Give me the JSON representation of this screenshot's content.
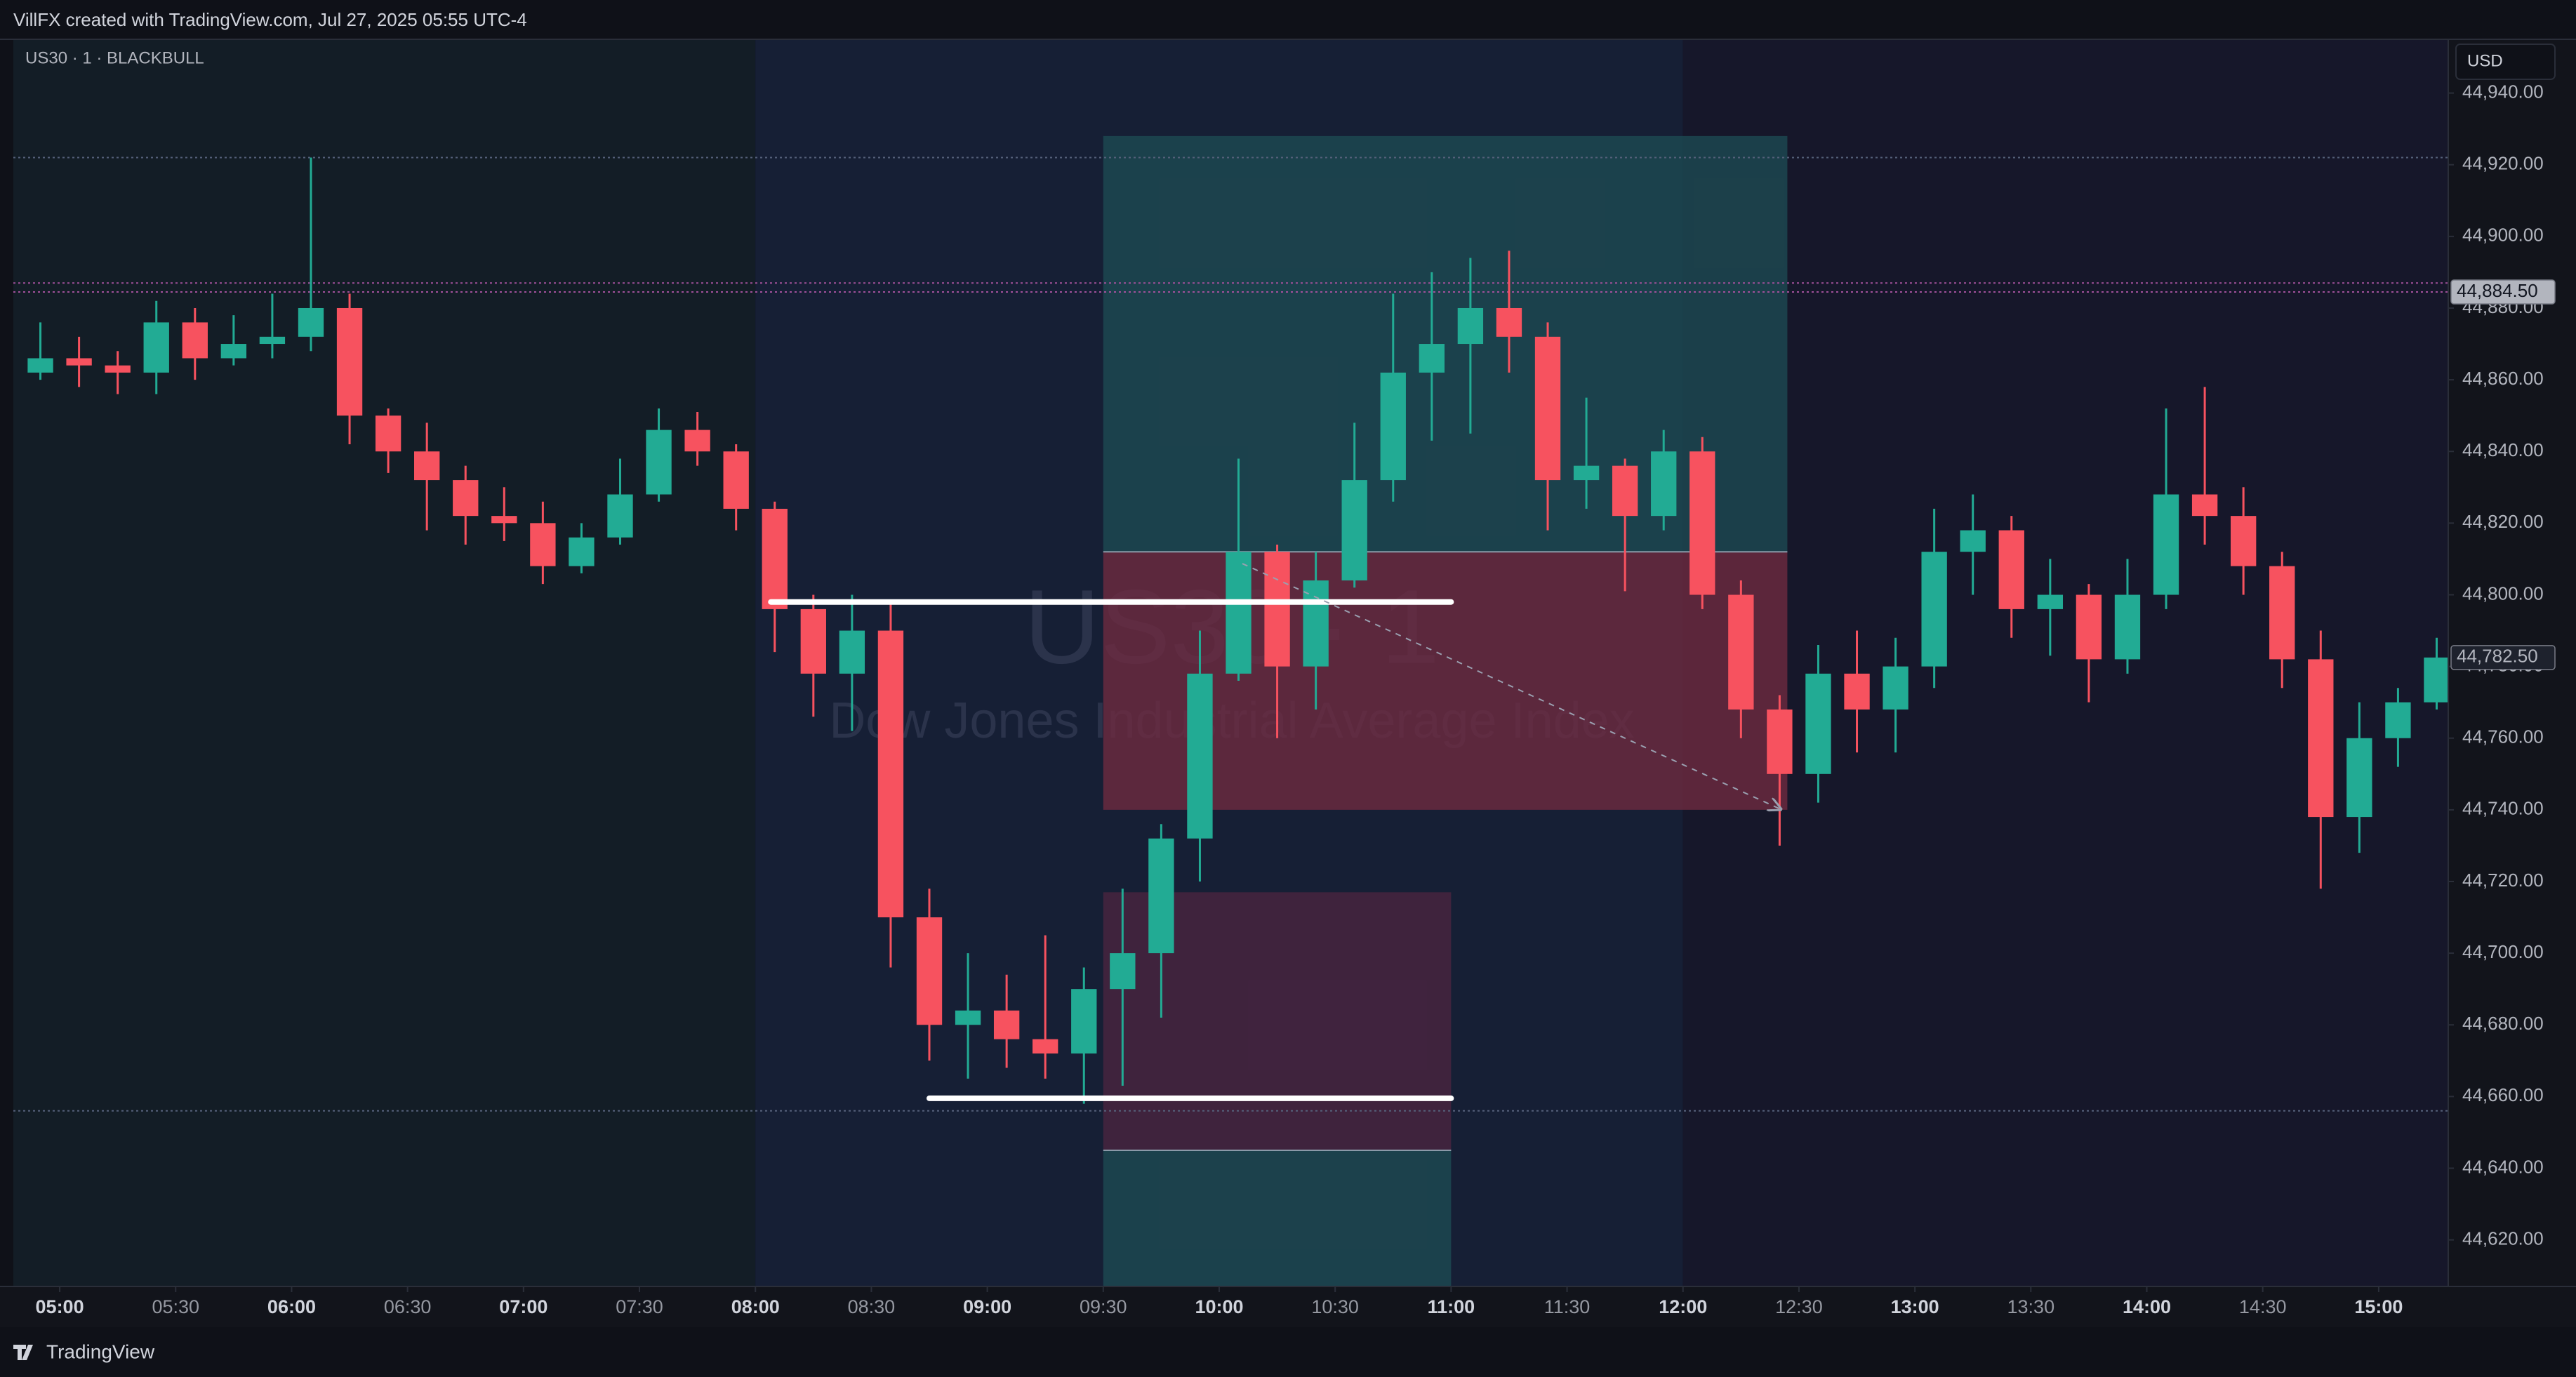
{
  "header": "VillFX created with TradingView.com, Jul 27, 2025 05:55 UTC-4",
  "footer": "TradingView",
  "chart_data": {
    "type": "candlestick",
    "legend": "US30 · 1 · BLACKBULL",
    "currency": "USD",
    "watermark": "US30 · 1",
    "watermark_subtitle": "Dow Jones Industrial Average Index",
    "up_color": "#22ab94",
    "down_color": "#f7525f",
    "xlim": [
      288,
      918
    ],
    "ylim": [
      44607,
      44955
    ],
    "xticks": [
      {
        "value": 300,
        "label": "05:00"
      },
      {
        "value": 330,
        "label": "05:30"
      },
      {
        "value": 360,
        "label": "06:00"
      },
      {
        "value": 390,
        "label": "06:30"
      },
      {
        "value": 420,
        "label": "07:00"
      },
      {
        "value": 450,
        "label": "07:30"
      },
      {
        "value": 480,
        "label": "08:00"
      },
      {
        "value": 510,
        "label": "08:30"
      },
      {
        "value": 540,
        "label": "09:00"
      },
      {
        "value": 570,
        "label": "09:30"
      },
      {
        "value": 600,
        "label": "10:00"
      },
      {
        "value": 630,
        "label": "10:30"
      },
      {
        "value": 660,
        "label": "11:00"
      },
      {
        "value": 690,
        "label": "11:30"
      },
      {
        "value": 720,
        "label": "12:00"
      },
      {
        "value": 750,
        "label": "12:30"
      },
      {
        "value": 780,
        "label": "13:00"
      },
      {
        "value": 810,
        "label": "13:30"
      },
      {
        "value": 840,
        "label": "14:00"
      },
      {
        "value": 870,
        "label": "14:30"
      },
      {
        "value": 900,
        "label": "15:00"
      }
    ],
    "yticks": [
      {
        "value": 44620,
        "label": "44,620.00"
      },
      {
        "value": 44640,
        "label": "44,640.00"
      },
      {
        "value": 44660,
        "label": "44,660.00"
      },
      {
        "value": 44680,
        "label": "44,680.00"
      },
      {
        "value": 44700,
        "label": "44,700.00"
      },
      {
        "value": 44720,
        "label": "44,720.00"
      },
      {
        "value": 44740,
        "label": "44,740.00"
      },
      {
        "value": 44760,
        "label": "44,760.00"
      },
      {
        "value": 44780,
        "label": "44,780.00"
      },
      {
        "value": 44800,
        "label": "44,800.00"
      },
      {
        "value": 44820,
        "label": "44,820.00"
      },
      {
        "value": 44840,
        "label": "44,840.00"
      },
      {
        "value": 44860,
        "label": "44,860.00"
      },
      {
        "value": 44880,
        "label": "44,880.00"
      },
      {
        "value": 44900,
        "label": "44,900.00"
      },
      {
        "value": 44920,
        "label": "44,920.00"
      },
      {
        "value": 44940,
        "label": "44,940.00"
      }
    ],
    "sessions": [
      {
        "start": 288,
        "end": 480,
        "color": "#131d26"
      },
      {
        "start": 480,
        "end": 720,
        "color": "#161f35"
      },
      {
        "start": 720,
        "end": 918,
        "color": "#16172a"
      }
    ],
    "horizontal_lines": [
      {
        "value": 44922,
        "color": "#55607a"
      },
      {
        "value": 44887,
        "color": "#a0509a"
      },
      {
        "value": 44884.5,
        "color": "#a0509a"
      },
      {
        "value": 44656,
        "color": "#55607a"
      }
    ],
    "positions": [
      {
        "x": [
          570,
          747
        ],
        "entry": 44812,
        "target": 44928,
        "stop": 44740,
        "target_color": "#1d4a52",
        "stop_color": "#6e2a40"
      },
      {
        "x": [
          570,
          660
        ],
        "entry": 44645,
        "target": 44607,
        "stop": 44717,
        "target_color": "#1d4a52",
        "stop_color": "#4a2440"
      }
    ],
    "segments": [
      {
        "x": [
          484,
          660
        ],
        "value": 44798,
        "color": "#ffffff"
      },
      {
        "x": [
          525,
          660
        ],
        "value": 44659.5,
        "color": "#ffffff"
      }
    ],
    "arrow": {
      "x": [
        606,
        745
      ],
      "values": [
        44808.7,
        44740.3
      ],
      "color": "#9aa0b0"
    },
    "price_labels": [
      {
        "value": 44884.5,
        "label": "44,884.50",
        "color": "#b2b5be",
        "text_color": "#131722"
      },
      {
        "value": 44782.5,
        "label": "44,782.50",
        "color": "#1e222d",
        "text_color": "#b2b5be"
      }
    ],
    "candles": {
      "x": [
        290,
        300,
        310,
        320,
        330,
        340,
        350,
        360,
        370,
        380,
        390,
        400,
        410,
        420,
        430,
        440,
        450,
        460,
        470,
        480,
        490,
        500,
        510,
        520,
        530,
        540,
        550,
        560,
        570,
        580,
        590,
        600,
        610,
        620,
        630,
        640,
        650,
        660,
        670,
        680,
        690,
        700,
        710,
        720,
        730,
        740,
        750,
        760,
        770,
        780,
        790,
        800,
        810,
        820,
        830,
        840,
        850,
        860,
        870,
        880,
        890,
        900,
        910
      ],
      "open": [
        44862,
        44866,
        44864,
        44862,
        44876,
        44866,
        44870,
        44872,
        44880,
        44850,
        44840,
        44832,
        44822,
        44820,
        44808,
        44816,
        44828,
        44846,
        44840,
        44824,
        44796,
        44778,
        44790,
        44710,
        44680,
        44684,
        44676,
        44672,
        44690,
        44700,
        44732,
        44778,
        44812,
        44780,
        44804,
        44832,
        44862,
        44870,
        44880,
        44872,
        44832,
        44836,
        44822,
        44840,
        44800,
        44768,
        44750,
        44778,
        44768,
        44780,
        44812,
        44818,
        44796,
        44800,
        44782,
        44800,
        44828,
        44822,
        44808,
        44782,
        44738,
        44760,
        44770
      ],
      "high": [
        44876,
        44872,
        44868,
        44882,
        44880,
        44878,
        44884,
        44922,
        44884,
        44852,
        44848,
        44836,
        44830,
        44826,
        44820,
        44838,
        44852,
        44851,
        44842,
        44826,
        44800,
        44800,
        44798,
        44718,
        44700,
        44694,
        44705,
        44696,
        44718,
        44736,
        44790,
        44838,
        44814,
        44812,
        44848,
        44884,
        44890,
        44894,
        44896,
        44876,
        44855,
        44838,
        44846,
        44844,
        44804,
        44772,
        44786,
        44790,
        44788,
        44824,
        44828,
        44822,
        44810,
        44803,
        44810,
        44852,
        44858,
        44830,
        44812,
        44790,
        44770,
        44774,
        44788
      ],
      "low": [
        44860,
        44858,
        44856,
        44856,
        44860,
        44864,
        44866,
        44868,
        44842,
        44834,
        44818,
        44814,
        44815,
        44803,
        44806,
        44814,
        44826,
        44836,
        44818,
        44784,
        44766,
        44762,
        44696,
        44670,
        44665,
        44668,
        44665,
        44658,
        44663,
        44682,
        44720,
        44776,
        44760,
        44768,
        44802,
        44826,
        44843,
        44845,
        44862,
        44818,
        44824,
        44801,
        44818,
        44796,
        44760,
        44730,
        44742,
        44756,
        44756,
        44774,
        44800,
        44788,
        44783,
        44770,
        44778,
        44796,
        44814,
        44800,
        44774,
        44718,
        44728,
        44752,
        44768
      ],
      "close": [
        44866,
        44864,
        44862,
        44876,
        44866,
        44870,
        44872,
        44880,
        44850,
        44840,
        44832,
        44822,
        44820,
        44808,
        44816,
        44828,
        44846,
        44840,
        44824,
        44796,
        44778,
        44790,
        44710,
        44680,
        44684,
        44676,
        44672,
        44690,
        44700,
        44732,
        44778,
        44812,
        44780,
        44804,
        44832,
        44862,
        44870,
        44880,
        44872,
        44832,
        44836,
        44822,
        44840,
        44800,
        44768,
        44750,
        44778,
        44768,
        44780,
        44812,
        44818,
        44796,
        44800,
        44782,
        44800,
        44828,
        44822,
        44808,
        44782,
        44738,
        44760,
        44770,
        44782.5
      ]
    }
  }
}
